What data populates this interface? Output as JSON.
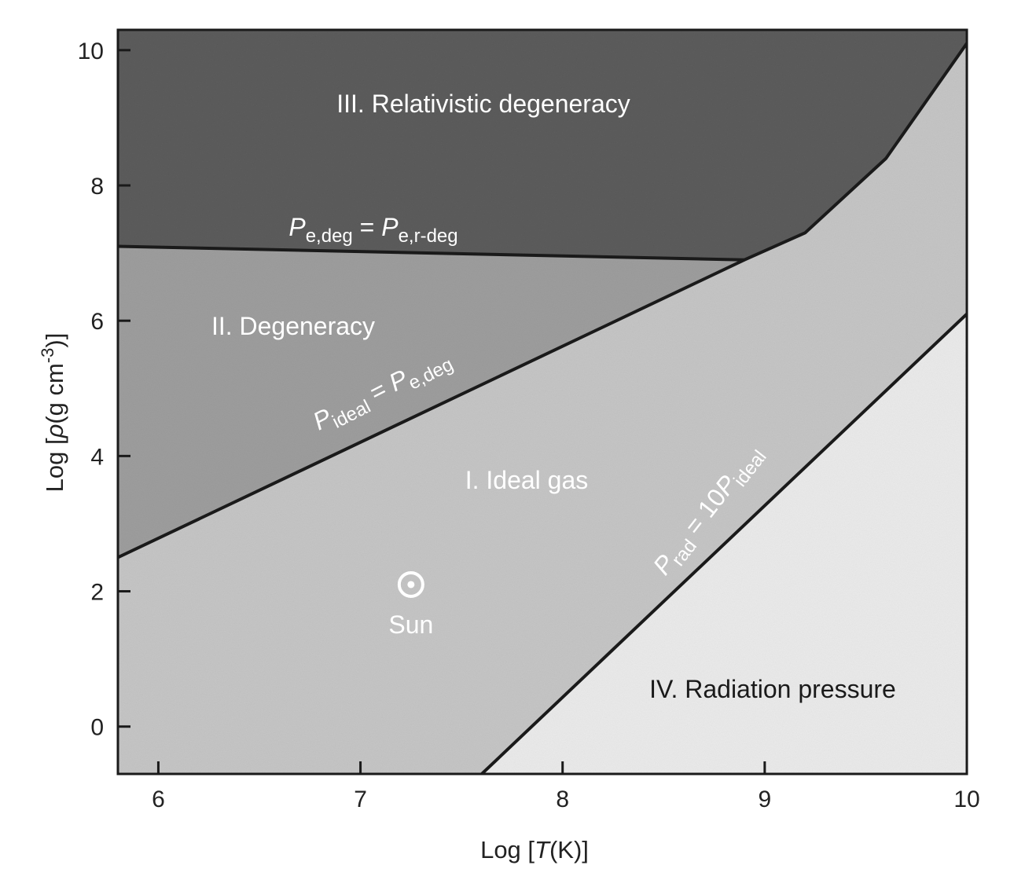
{
  "chart_data": {
    "type": "area",
    "xlabel": "Log [T(K)]",
    "ylabel": "Log [ρ(g cm⁻³)]",
    "xlim": [
      5.8,
      10.0
    ],
    "ylim": [
      -0.7,
      10.3
    ],
    "xticks": [
      6,
      7,
      8,
      9,
      10
    ],
    "yticks": [
      0,
      2,
      4,
      6,
      8,
      10
    ],
    "grid": false,
    "boundaries": [
      {
        "name": "P_e,deg = P_e,r-deg",
        "label_main": "P",
        "label_sub": "e,deg",
        "label_eq": " = ",
        "label_main2": "P",
        "label_sub2": "e,r-deg",
        "x": [
          5.8,
          8.9
        ],
        "y": [
          7.1,
          6.9
        ]
      },
      {
        "name": "P_ideal = P_e,deg",
        "label_main": "P",
        "label_sub": "ideal",
        "label_eq": " = ",
        "label_main2": "P",
        "label_sub2": "e,deg",
        "x": [
          5.8,
          8.9,
          9.2,
          9.6,
          10.0
        ],
        "y": [
          2.5,
          6.9,
          7.3,
          8.4,
          10.1
        ]
      },
      {
        "name": "P_rad = 10 P_ideal",
        "label_main": "P",
        "label_sub": "rad",
        "label_eq": " = 10",
        "label_main2": "P",
        "label_sub2": "ideal",
        "x": [
          7.6,
          10.0
        ],
        "y": [
          -0.7,
          6.1
        ]
      }
    ],
    "regions": [
      {
        "label": "I. Ideal gas",
        "fill": "#c6c6c6",
        "text_color": "#ffffff"
      },
      {
        "label": "II. Degeneracy",
        "fill": "#9e9e9e",
        "text_color": "#ffffff"
      },
      {
        "label": "III. Relativistic degeneracy",
        "fill": "#5c5c5c",
        "text_color": "#ffffff"
      },
      {
        "label": "IV. Radiation pressure",
        "fill": "#ebebeb",
        "text_color": "#1a1a1a"
      }
    ],
    "points": [
      {
        "label": "Sun",
        "x": 7.25,
        "y": 2.1,
        "symbol": "sun-symbol"
      }
    ]
  }
}
